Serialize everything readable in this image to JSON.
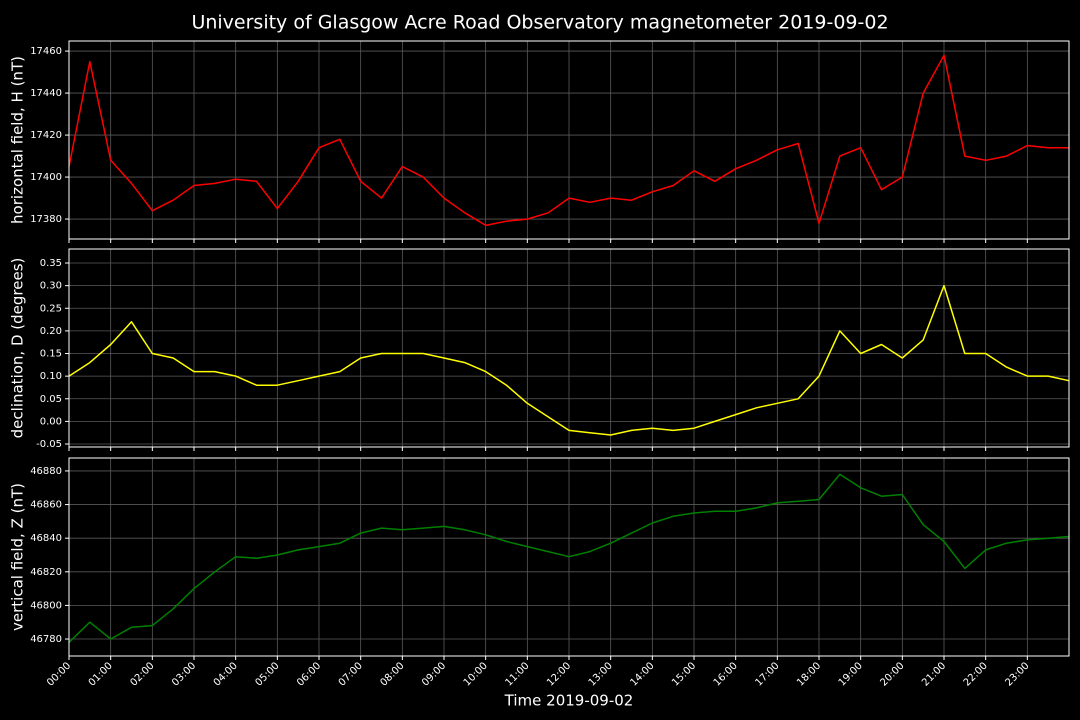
{
  "chart_data": [
    {
      "type": "line",
      "title": "University of Glasgow Acre Road Observatory magnetometer 2019-09-02",
      "ylabel": "horizontal field, H (nT)",
      "color": "#ff0000",
      "grid": true,
      "xlim": [
        0,
        24
      ],
      "ylim": [
        17370.5,
        17464.8
      ],
      "yticks": [
        17380,
        17400,
        17420,
        17440,
        17460
      ],
      "x": [
        0,
        0.5,
        1,
        1.5,
        2,
        2.5,
        3,
        3.5,
        4,
        4.5,
        5,
        5.5,
        6,
        6.5,
        7,
        7.5,
        8,
        8.5,
        9,
        9.5,
        10,
        10.5,
        11,
        11.5,
        12,
        12.5,
        13,
        13.5,
        14,
        14.5,
        15,
        15.5,
        16,
        16.5,
        17,
        17.5,
        18,
        18.5,
        19,
        19.5,
        20,
        20.5,
        21,
        21.5,
        22,
        22.5,
        23,
        23.5,
        24
      ],
      "values": [
        17405,
        17455,
        17408,
        17397,
        17384,
        17389,
        17396,
        17397,
        17399,
        17398,
        17385,
        17398,
        17414,
        17418,
        17398,
        17390,
        17405,
        17400,
        17390,
        17383,
        17377,
        17379,
        17380,
        17383,
        17390,
        17388,
        17390,
        17389,
        17393,
        17396,
        17403,
        17398,
        17404,
        17408,
        17413,
        17416,
        17378,
        17410,
        17414,
        17394,
        17400,
        17440,
        17458,
        17410,
        17408,
        17410,
        17415,
        17414,
        17414
      ]
    },
    {
      "type": "line",
      "ylabel": "declination, D (degrees)",
      "color": "#ffff00",
      "grid": true,
      "xlim": [
        0,
        24
      ],
      "ylim": [
        -0.0566,
        0.381
      ],
      "yticks": [
        -0.05,
        {
          "value": 0.0,
          "label": "0.00"
        },
        0.05,
        {
          "value": 0.1,
          "label": "0.10"
        },
        0.15,
        {
          "value": 0.2,
          "label": "0.20"
        },
        0.25,
        {
          "value": 0.3,
          "label": "0.30"
        },
        0.35
      ],
      "x": [
        0,
        0.5,
        1,
        1.5,
        2,
        2.5,
        3,
        3.5,
        4,
        4.5,
        5,
        5.5,
        6,
        6.5,
        7,
        7.5,
        8,
        8.5,
        9,
        9.5,
        10,
        10.5,
        11,
        11.5,
        12,
        12.5,
        13,
        13.5,
        14,
        14.5,
        15,
        15.5,
        16,
        16.5,
        17,
        17.5,
        18,
        18.5,
        19,
        19.5,
        20,
        20.5,
        21,
        21.5,
        22,
        22.5,
        23,
        23.5,
        24
      ],
      "values": [
        0.1,
        0.13,
        0.17,
        0.22,
        0.15,
        0.14,
        0.11,
        0.11,
        0.1,
        0.08,
        0.08,
        0.09,
        0.1,
        0.11,
        0.14,
        0.15,
        0.15,
        0.15,
        0.14,
        0.13,
        0.11,
        0.08,
        0.04,
        0.01,
        -0.02,
        -0.025,
        -0.03,
        -0.02,
        -0.015,
        -0.02,
        -0.015,
        0.0,
        0.015,
        0.03,
        0.04,
        0.05,
        0.1,
        0.2,
        0.15,
        0.17,
        0.14,
        0.18,
        0.3,
        0.15,
        0.15,
        0.12,
        0.1,
        0.1,
        0.09
      ]
    },
    {
      "type": "line",
      "ylabel": "vertical field, Z (nT)",
      "xlabel": "Time 2019-09-02",
      "color": "#008000",
      "grid": true,
      "xlim": [
        0,
        24
      ],
      "ylim": [
        46769.9,
        46887.7
      ],
      "yticks": [
        46780,
        46800,
        46820,
        46840,
        46860,
        46880
      ],
      "xticks": [
        {
          "value": 0,
          "label": "00:00"
        },
        {
          "value": 1,
          "label": "01:00"
        },
        {
          "value": 2,
          "label": "02:00"
        },
        {
          "value": 3,
          "label": "03:00"
        },
        {
          "value": 4,
          "label": "04:00"
        },
        {
          "value": 5,
          "label": "05:00"
        },
        {
          "value": 6,
          "label": "06:00"
        },
        {
          "value": 7,
          "label": "07:00"
        },
        {
          "value": 8,
          "label": "08:00"
        },
        {
          "value": 9,
          "label": "09:00"
        },
        {
          "value": 10,
          "label": "10:00"
        },
        {
          "value": 11,
          "label": "11:00"
        },
        {
          "value": 12,
          "label": "12:00"
        },
        {
          "value": 13,
          "label": "13:00"
        },
        {
          "value": 14,
          "label": "14:00"
        },
        {
          "value": 15,
          "label": "15:00"
        },
        {
          "value": 16,
          "label": "16:00"
        },
        {
          "value": 17,
          "label": "17:00"
        },
        {
          "value": 18,
          "label": "18:00"
        },
        {
          "value": 19,
          "label": "19:00"
        },
        {
          "value": 20,
          "label": "20:00"
        },
        {
          "value": 21,
          "label": "21:00"
        },
        {
          "value": 22,
          "label": "22:00"
        },
        {
          "value": 23,
          "label": "23:00"
        }
      ],
      "x": [
        0,
        0.5,
        1,
        1.5,
        2,
        2.5,
        3,
        3.5,
        4,
        4.5,
        5,
        5.5,
        6,
        6.5,
        7,
        7.5,
        8,
        8.5,
        9,
        9.5,
        10,
        10.5,
        11,
        11.5,
        12,
        12.5,
        13,
        13.5,
        14,
        14.5,
        15,
        15.5,
        16,
        16.5,
        17,
        17.5,
        18,
        18.5,
        19,
        19.5,
        20,
        20.5,
        21,
        21.5,
        22,
        22.5,
        23,
        23.5,
        24
      ],
      "values": [
        46778,
        46790,
        46780,
        46787,
        46788,
        46798,
        46810,
        46820,
        46829,
        46828,
        46830,
        46833,
        46835,
        46837,
        46843,
        46846,
        46845,
        46846,
        46847,
        46845,
        46842,
        46838,
        46835,
        46832,
        46829,
        46832,
        46837,
        46843,
        46849,
        46853,
        46855,
        46856,
        46856,
        46858,
        46861,
        46862,
        46863,
        46878,
        46870,
        46865,
        46866,
        46848,
        46838,
        46822,
        46833,
        46837,
        46839,
        46840,
        46841
      ]
    }
  ]
}
